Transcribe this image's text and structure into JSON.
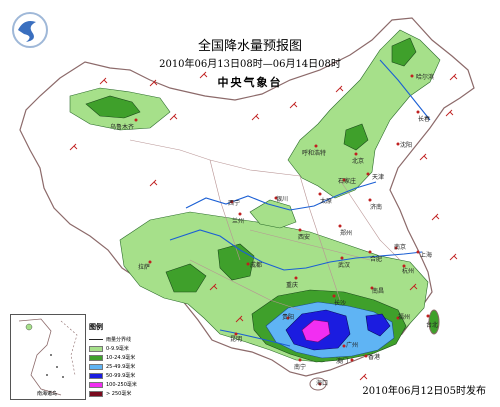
{
  "title": "全国降水量预报图",
  "period": "2010年06月13日08时—06月14日08时",
  "agency": "中央气象台",
  "issued": "2010年06月12日05时发布",
  "legend": {
    "title": "图例",
    "line_label": "雨量分界线",
    "items": [
      {
        "label": "0-9.9毫米",
        "color": "#a6e08a"
      },
      {
        "label": "10-24.9毫米",
        "color": "#3fa02b"
      },
      {
        "label": "25-49.9毫米",
        "color": "#5fb4f4"
      },
      {
        "label": "50-99.9毫米",
        "color": "#1b1ce0"
      },
      {
        "label": "100-250毫米",
        "color": "#f22ef2"
      },
      {
        "label": "> 250毫米",
        "color": "#7a0a1e"
      }
    ]
  },
  "inset_label": "南海诸岛",
  "cities": [
    "乌鲁木齐",
    "哈尔滨",
    "长春",
    "沈阳",
    "呼和浩特",
    "北京",
    "天津",
    "石家庄",
    "太原",
    "济南",
    "银川",
    "西宁",
    "兰州",
    "西安",
    "郑州",
    "合肥",
    "南京",
    "上海",
    "武汉",
    "杭州",
    "成都",
    "重庆",
    "长沙",
    "南昌",
    "福州",
    "拉萨",
    "贵阳",
    "昆明",
    "南宁",
    "广州",
    "香港",
    "澳门",
    "海口",
    "台北"
  ],
  "colors": {
    "land": "#ffffff",
    "border": "#8c6a6a",
    "river": "#1b5fd4",
    "rain_light": "#a6e08a",
    "rain_moderate": "#3fa02b",
    "rain_heavy": "#5fb4f4",
    "rain_rainstorm": "#1b1ce0",
    "rain_downpour": "#f22ef2"
  }
}
